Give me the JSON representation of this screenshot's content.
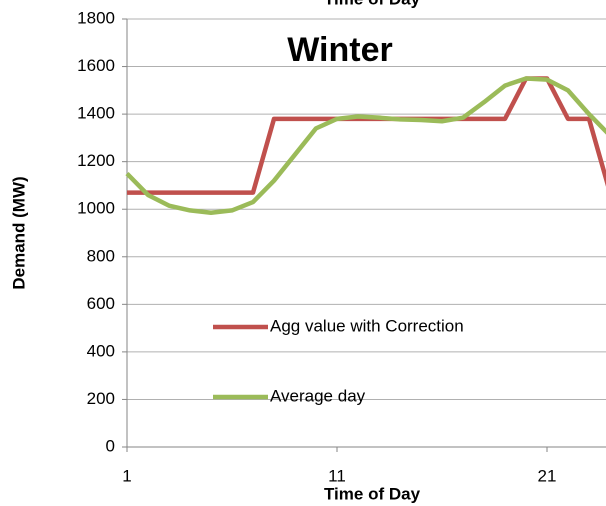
{
  "chart_data": {
    "type": "line",
    "title": "Time of Day",
    "annotation": "Winter",
    "x_label": "Time of Day",
    "y_label": "Demand (MW)",
    "x": [
      1,
      2,
      3,
      4,
      5,
      6,
      7,
      8,
      9,
      10,
      11,
      12,
      13,
      14,
      15,
      16,
      17,
      18,
      19,
      20,
      21,
      22,
      23,
      24
    ],
    "series": [
      {
        "name": "Agg value with Correction",
        "color": "#c0504d",
        "values": [
          1070,
          1070,
          1070,
          1070,
          1070,
          1070,
          1070,
          1380,
          1380,
          1380,
          1380,
          1380,
          1380,
          1380,
          1380,
          1380,
          1380,
          1380,
          1380,
          1550,
          1550,
          1380,
          1380,
          1070
        ]
      },
      {
        "name": "Average day",
        "color": "#9bbb59",
        "values": [
          1150,
          1060,
          1015,
          995,
          985,
          995,
          1030,
          1120,
          1230,
          1340,
          1380,
          1390,
          1385,
          1378,
          1375,
          1370,
          1385,
          1450,
          1520,
          1550,
          1545,
          1500,
          1400,
          1310
        ]
      }
    ],
    "xlim": [
      1,
      24
    ],
    "xticks": [
      1,
      11,
      21
    ],
    "ylim": [
      0,
      1800
    ],
    "yticks": [
      0,
      200,
      400,
      600,
      800,
      1000,
      1200,
      1400,
      1600,
      1800
    ],
    "grid": true,
    "legend": "center"
  }
}
